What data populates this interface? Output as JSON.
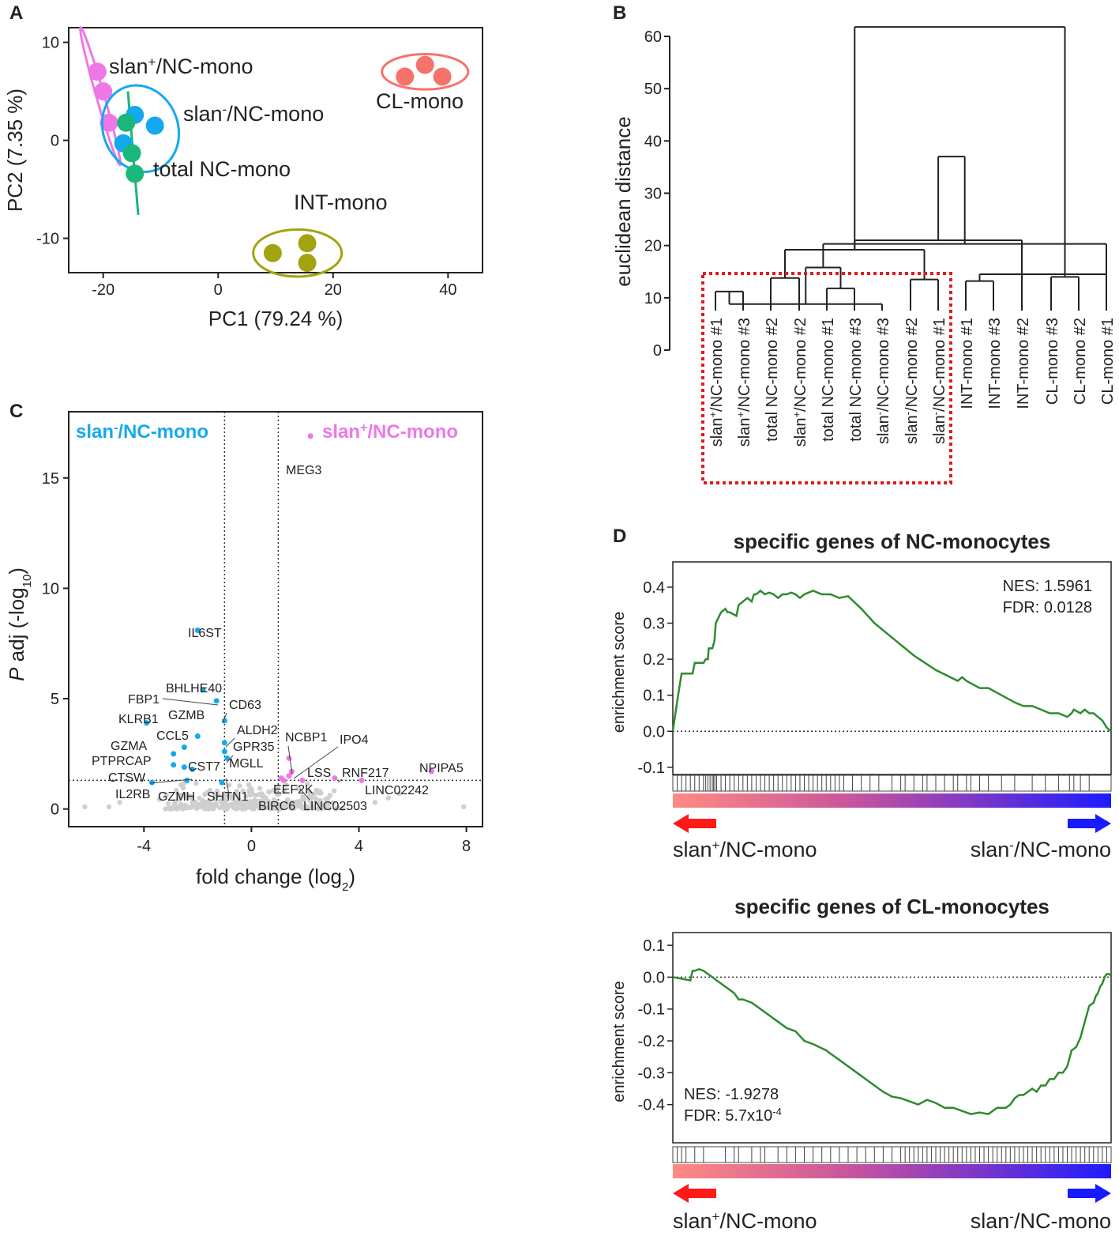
{
  "figure": {
    "panels": {
      "a": "A",
      "b": "B",
      "c": "C",
      "d": "D"
    }
  },
  "colors": {
    "slan_pos": "#ee77e8",
    "slan_neg": "#14a9ee",
    "total_nc": "#19b779",
    "int": "#a3a310",
    "cl": "#f5736a",
    "gsea_line": "#2e8b2e",
    "dendro_box": "#e01b1b",
    "arrow_red": "#ff1a1a",
    "arrow_blue": "#1a1aff"
  },
  "chart_data": [
    {
      "id": "pca",
      "type": "scatter",
      "xlabel": "PC1 (79.24 %)",
      "ylabel": "PC2 (7.35 %)",
      "xlim": [
        -26,
        46
      ],
      "ylim": [
        -13.5,
        11.5
      ],
      "xticks": [
        "-20",
        "0",
        "20",
        "40"
      ],
      "xtick_values": [
        -20,
        0,
        20,
        40
      ],
      "yticks": [
        "10",
        "0",
        "-10"
      ],
      "ytick_values": [
        10,
        0,
        -10
      ],
      "groups": [
        {
          "name": "slan",
          "sup": "+",
          "rest": "/NC-mono",
          "color_key": "slan_pos",
          "points": [
            [
              -21,
              7
            ],
            [
              -20,
              5
            ],
            [
              -19,
              1.8
            ]
          ],
          "ellipse": {
            "cx": -20.5,
            "cy": 4.5,
            "rx": 1.3,
            "ry": 7.3,
            "angle": 82
          }
        },
        {
          "name": "slan",
          "sup": "-",
          "rest": "/NC-mono",
          "color_key": "slan_neg",
          "points": [
            [
              -14.5,
              2.6
            ],
            [
              -11,
              1.5
            ],
            [
              -16.5,
              -0.3
            ]
          ],
          "ellipse": {
            "cx": -13.5,
            "cy": 1.2,
            "rx": 6.5,
            "ry": 4.5,
            "angle": 20
          }
        },
        {
          "name": "total NC-mono",
          "sup": "",
          "rest": "",
          "color_key": "total_nc",
          "points": [
            [
              -16,
              1.8
            ],
            [
              -15,
              -1.3
            ],
            [
              -14.5,
              -3.4
            ]
          ],
          "ellipse": null
        },
        {
          "name": "INT-mono",
          "sup": "",
          "rest": "",
          "color_key": "int",
          "points": [
            [
              9.5,
              -11.5
            ],
            [
              15.5,
              -10.5
            ],
            [
              15.5,
              -12.5
            ]
          ],
          "ellipse": {
            "cx": 13.8,
            "cy": -11.5,
            "rx": 7.7,
            "ry": 2.4,
            "angle": 0
          }
        },
        {
          "name": "CL-mono",
          "sup": "",
          "rest": "",
          "color_key": "cl",
          "points": [
            [
              32.5,
              6.5
            ],
            [
              36,
              7.7
            ],
            [
              39,
              6.5
            ]
          ],
          "ellipse": {
            "cx": 36,
            "cy": 7,
            "rx": 7.5,
            "ry": 1.8,
            "angle": 0
          }
        }
      ],
      "total_nc_line": [
        [
          -15.7,
          5
        ],
        [
          -13.9,
          -7.6
        ]
      ]
    },
    {
      "id": "dendrogram",
      "type": "dendrogram",
      "ylabel": "euclidean distance",
      "ylim": [
        0,
        62
      ],
      "yticks": [
        "0",
        "10",
        "20",
        "30",
        "40",
        "50",
        "60"
      ],
      "ytick_values": [
        0,
        10,
        20,
        30,
        40,
        50,
        60
      ],
      "leaves": [
        {
          "base": "slan",
          "sup": "+",
          "rest": "/NC-mono #1"
        },
        {
          "base": "slan",
          "sup": "+",
          "rest": "/NC-mono #3"
        },
        {
          "base": "total NC-mono #2",
          "sup": "",
          "rest": ""
        },
        {
          "base": "slan",
          "sup": "+",
          "rest": "/NC-mono #2"
        },
        {
          "base": "total NC-mono #1",
          "sup": "",
          "rest": ""
        },
        {
          "base": "total NC-mono #3",
          "sup": "",
          "rest": ""
        },
        {
          "base": "slan",
          "sup": "-",
          "rest": "/NC-mono #3"
        },
        {
          "base": "slan",
          "sup": "-",
          "rest": "/NC-mono #2"
        },
        {
          "base": "slan",
          "sup": "-",
          "rest": "/NC-mono #1"
        },
        {
          "base": "INT-mono #1",
          "sup": "",
          "rest": ""
        },
        {
          "base": "INT-mono #3",
          "sup": "",
          "rest": ""
        },
        {
          "base": "INT-mono #2",
          "sup": "",
          "rest": ""
        },
        {
          "base": "CL-mono #3",
          "sup": "",
          "rest": ""
        },
        {
          "base": "CL-mono #2",
          "sup": "",
          "rest": ""
        },
        {
          "base": "CL-mono #1",
          "sup": "",
          "rest": ""
        }
      ],
      "merges": [
        {
          "l": 0,
          "r": 1,
          "h": 11.2
        },
        {
          "l": 2,
          "r": 3,
          "h": 13.8
        },
        {
          "l": 4,
          "r": 5,
          "h": 11.8
        },
        {
          "l": 15,
          "r": 6,
          "h": 8.8
        },
        {
          "l": 7,
          "r": 8,
          "h": 13.5
        },
        {
          "l": 17,
          "r": 18,
          "h": 15.8
        },
        {
          "l": 16,
          "r": 19,
          "h": 19.2
        },
        {
          "l": 20,
          "r": 14,
          "h": 20.3
        },
        {
          "l": 9,
          "r": 10,
          "h": 13.2
        },
        {
          "l": 21,
          "r": 11,
          "h": 21.0
        },
        {
          "l": 12,
          "r": 13,
          "h": 14.0
        },
        {
          "l": 23,
          "r": 14,
          "h": 14.5
        },
        {
          "l": 22,
          "r": 24,
          "h": 37.0
        },
        {
          "l": 21,
          "r": 25,
          "h": 61.8
        }
      ],
      "boxed_cluster_leaves": [
        0,
        8
      ]
    },
    {
      "id": "volcano",
      "type": "scatter",
      "xlabel": "fold change (log",
      "xlabel_sub": "2",
      "xlabel_end": ")",
      "ylabel_italic": "P",
      "ylabel": " adj (-log",
      "ylabel_sub": "10",
      "ylabel_end": ")",
      "xlim": [
        -6.8,
        8.6
      ],
      "ylim": [
        -0.8,
        18.0
      ],
      "xticks": [
        "-4",
        "0",
        "4",
        "8"
      ],
      "xtick_values": [
        -4,
        0,
        4,
        8
      ],
      "yticks": [
        "0",
        "5",
        "10",
        "15"
      ],
      "ytick_values": [
        0,
        5,
        10,
        15
      ],
      "fc_thresholds": [
        -1,
        1
      ],
      "p_threshold": 1.3,
      "header_left": {
        "base": "slan",
        "sup": "-",
        "rest": "/NC-mono"
      },
      "header_right": {
        "base": "slan",
        "sup": "+",
        "rest": "/NC-mono"
      },
      "blue_genes": [
        {
          "name": "IL6ST",
          "x": -2.0,
          "y": 8.1
        },
        {
          "name": "BHLHE40",
          "x": -1.8,
          "y": 5.4
        },
        {
          "name": "FBP1",
          "x": -1.3,
          "y": 4.9
        },
        {
          "name": "CD63",
          "x": -1.0,
          "y": 4.0
        },
        {
          "name": "KLRB1",
          "x": -3.9,
          "y": 3.9
        },
        {
          "name": "GZMB",
          "x": -2.0,
          "y": 3.3
        },
        {
          "name": "ALDH2",
          "x": -1.0,
          "y": 3.0
        },
        {
          "name": "CCL5",
          "x": -2.5,
          "y": 2.8
        },
        {
          "name": "GPR35",
          "x": -1.0,
          "y": 2.6
        },
        {
          "name": "GZMA",
          "x": -2.9,
          "y": 2.5
        },
        {
          "name": "MGLL",
          "x": -0.9,
          "y": 2.3
        },
        {
          "name": "PTPRCAP",
          "x": -2.9,
          "y": 2.0
        },
        {
          "name": "CST7",
          "x": -2.2,
          "y": 1.8
        },
        {
          "name": "CTSW",
          "x": -2.5,
          "y": 1.9
        },
        {
          "name": "IL2RB",
          "x": -3.7,
          "y": 1.2
        },
        {
          "name": "GZMH",
          "x": -2.4,
          "y": 1.3
        },
        {
          "name": "SHTN1",
          "x": -1.1,
          "y": 1.2
        }
      ],
      "pink_genes": [
        {
          "name": "MEG3",
          "x": 2.2,
          "y": 16.9
        },
        {
          "name": "NCBP1",
          "x": 1.4,
          "y": 2.3
        },
        {
          "name": "IPO4",
          "x": 1.5,
          "y": 1.7
        },
        {
          "name": "LSS",
          "x": 1.4,
          "y": 1.5
        },
        {
          "name": "RNF217",
          "x": 3.1,
          "y": 1.4
        },
        {
          "name": "NPIPA5",
          "x": 6.7,
          "y": 1.7
        },
        {
          "name": "EEF2K",
          "x": 1.1,
          "y": 1.4
        },
        {
          "name": "LINC02242",
          "x": 4.1,
          "y": 1.3
        },
        {
          "name": "BIRC6",
          "x": 1.2,
          "y": 1.3
        },
        {
          "name": "LINC02503",
          "x": 1.9,
          "y": 1.3
        }
      ]
    },
    {
      "id": "gsea_nc",
      "type": "line",
      "title": "specific genes of NC-monocytes",
      "ylabel": "enrichment score",
      "xlim": [
        0,
        100
      ],
      "ylim": [
        -0.12,
        0.47
      ],
      "yticks": [
        "0.4",
        "0.3",
        "0.2",
        "0.1",
        "0.0",
        "-0.1"
      ],
      "ytick_values": [
        0.4,
        0.3,
        0.2,
        0.1,
        0.0,
        -0.1
      ],
      "nes": "NES: 1.5961",
      "fdr": "FDR: 0.0128",
      "stats_position": "top-right",
      "x": [
        0,
        0.6,
        1.2,
        2,
        4.5,
        5,
        7,
        7.5,
        8,
        8.2,
        9,
        9.5,
        9.8,
        10.2,
        11,
        12,
        12.5,
        13,
        14.5,
        15,
        16,
        17,
        18,
        18.5,
        19,
        20,
        21,
        22,
        23,
        24,
        25,
        26,
        27,
        28,
        29,
        30,
        31,
        32,
        33,
        34,
        36,
        38,
        40,
        43,
        46,
        50,
        55,
        60,
        65,
        66,
        67,
        70,
        72,
        75,
        78,
        80,
        82,
        84,
        86,
        88,
        90,
        91,
        91.5,
        93,
        94,
        95,
        96,
        97,
        98,
        99,
        100
      ],
      "y": [
        0,
        0.05,
        0.1,
        0.16,
        0.16,
        0.19,
        0.19,
        0.2,
        0.2,
        0.23,
        0.23,
        0.25,
        0.3,
        0.31,
        0.33,
        0.34,
        0.33,
        0.33,
        0.32,
        0.35,
        0.36,
        0.37,
        0.36,
        0.38,
        0.38,
        0.39,
        0.38,
        0.385,
        0.38,
        0.37,
        0.38,
        0.38,
        0.385,
        0.38,
        0.37,
        0.38,
        0.385,
        0.39,
        0.385,
        0.38,
        0.38,
        0.37,
        0.375,
        0.34,
        0.3,
        0.26,
        0.21,
        0.17,
        0.14,
        0.15,
        0.14,
        0.12,
        0.12,
        0.1,
        0.08,
        0.07,
        0.07,
        0.06,
        0.05,
        0.05,
        0.04,
        0.05,
        0.06,
        0.05,
        0.06,
        0.05,
        0.05,
        0.04,
        0.03,
        0.01,
        0
      ],
      "hits": [
        1,
        2,
        3,
        4,
        5,
        6,
        7,
        7.5,
        8,
        8.5,
        9,
        9.3,
        9.6,
        10,
        11,
        12,
        13,
        14,
        15,
        16,
        17,
        18,
        19,
        20,
        21,
        22,
        23,
        24,
        25,
        26,
        27,
        28,
        29,
        30,
        31,
        32,
        33,
        34,
        35,
        36,
        37,
        38,
        39,
        41,
        43,
        45,
        47,
        50,
        52,
        53,
        55,
        57,
        58,
        60,
        62,
        64,
        65,
        67,
        68,
        70,
        72,
        75,
        78,
        82,
        85,
        88,
        90.5,
        91.5,
        93,
        95
      ],
      "left_group": {
        "base": "slan",
        "sup": "+",
        "rest": "/NC-mono"
      },
      "right_group": {
        "base": "slan",
        "sup": "-",
        "rest": "/NC-mono"
      }
    },
    {
      "id": "gsea_cl",
      "type": "line",
      "title": "specific genes of CL-monocytes",
      "ylabel": "enrichment score",
      "xlim": [
        0,
        100
      ],
      "ylim": [
        -0.52,
        0.14
      ],
      "yticks": [
        "0.1",
        "0.0",
        "-0.1",
        "-0.2",
        "-0.3",
        "-0.4"
      ],
      "ytick_values": [
        0.1,
        0.0,
        -0.1,
        -0.2,
        -0.3,
        -0.4
      ],
      "nes": "NES: -1.9278",
      "fdr_base": "FDR: 5.7x10",
      "fdr_sup": "-4",
      "stats_position": "bottom-left",
      "x": [
        0,
        2,
        4,
        4.5,
        5,
        6,
        7,
        8,
        9,
        10,
        12,
        14,
        15,
        16,
        18,
        20,
        22,
        24,
        26,
        28,
        30,
        32,
        35,
        36,
        38,
        40,
        42,
        44,
        46,
        48,
        50,
        52,
        54,
        56,
        58,
        60,
        62,
        64,
        66,
        68,
        70,
        72,
        74,
        76,
        77,
        78,
        79,
        80,
        81,
        82,
        83,
        84,
        85,
        86,
        87,
        88,
        89,
        90,
        91,
        92,
        93,
        94,
        95,
        96,
        96.5,
        97,
        97.5,
        98,
        98.5,
        99,
        99.5,
        100
      ],
      "y": [
        0,
        -0.005,
        -0.01,
        0.02,
        0.02,
        0.025,
        0.02,
        0.01,
        0.0,
        -0.01,
        -0.03,
        -0.05,
        -0.07,
        -0.07,
        -0.08,
        -0.1,
        -0.12,
        -0.14,
        -0.16,
        -0.17,
        -0.2,
        -0.21,
        -0.23,
        -0.24,
        -0.26,
        -0.28,
        -0.3,
        -0.32,
        -0.34,
        -0.36,
        -0.375,
        -0.38,
        -0.39,
        -0.4,
        -0.385,
        -0.395,
        -0.41,
        -0.41,
        -0.42,
        -0.43,
        -0.425,
        -0.43,
        -0.41,
        -0.41,
        -0.4,
        -0.38,
        -0.37,
        -0.37,
        -0.36,
        -0.35,
        -0.36,
        -0.34,
        -0.34,
        -0.32,
        -0.32,
        -0.3,
        -0.3,
        -0.28,
        -0.23,
        -0.22,
        -0.19,
        -0.14,
        -0.09,
        -0.08,
        -0.06,
        -0.05,
        -0.03,
        -0.02,
        0.0,
        0.01,
        0.01,
        0.005
      ],
      "hits": [
        1,
        2,
        3,
        5,
        7,
        12,
        14,
        15,
        18,
        20,
        21,
        24,
        26,
        28,
        30,
        32,
        34,
        36,
        38,
        40,
        42,
        44,
        46,
        48,
        50,
        52,
        53,
        54,
        55,
        56,
        57,
        58,
        59,
        60,
        61,
        62,
        63,
        64,
        65,
        66,
        67,
        68,
        69,
        70,
        71,
        72,
        73,
        74,
        75,
        76,
        77,
        78,
        79,
        80,
        81,
        82,
        83,
        84,
        85,
        86,
        87,
        88,
        89,
        90,
        91,
        92,
        93,
        94,
        95,
        96,
        97,
        98,
        99
      ],
      "left_group": {
        "base": "slan",
        "sup": "+",
        "rest": "/NC-mono"
      },
      "right_group": {
        "base": "slan",
        "sup": "-",
        "rest": "/NC-mono"
      }
    }
  ]
}
